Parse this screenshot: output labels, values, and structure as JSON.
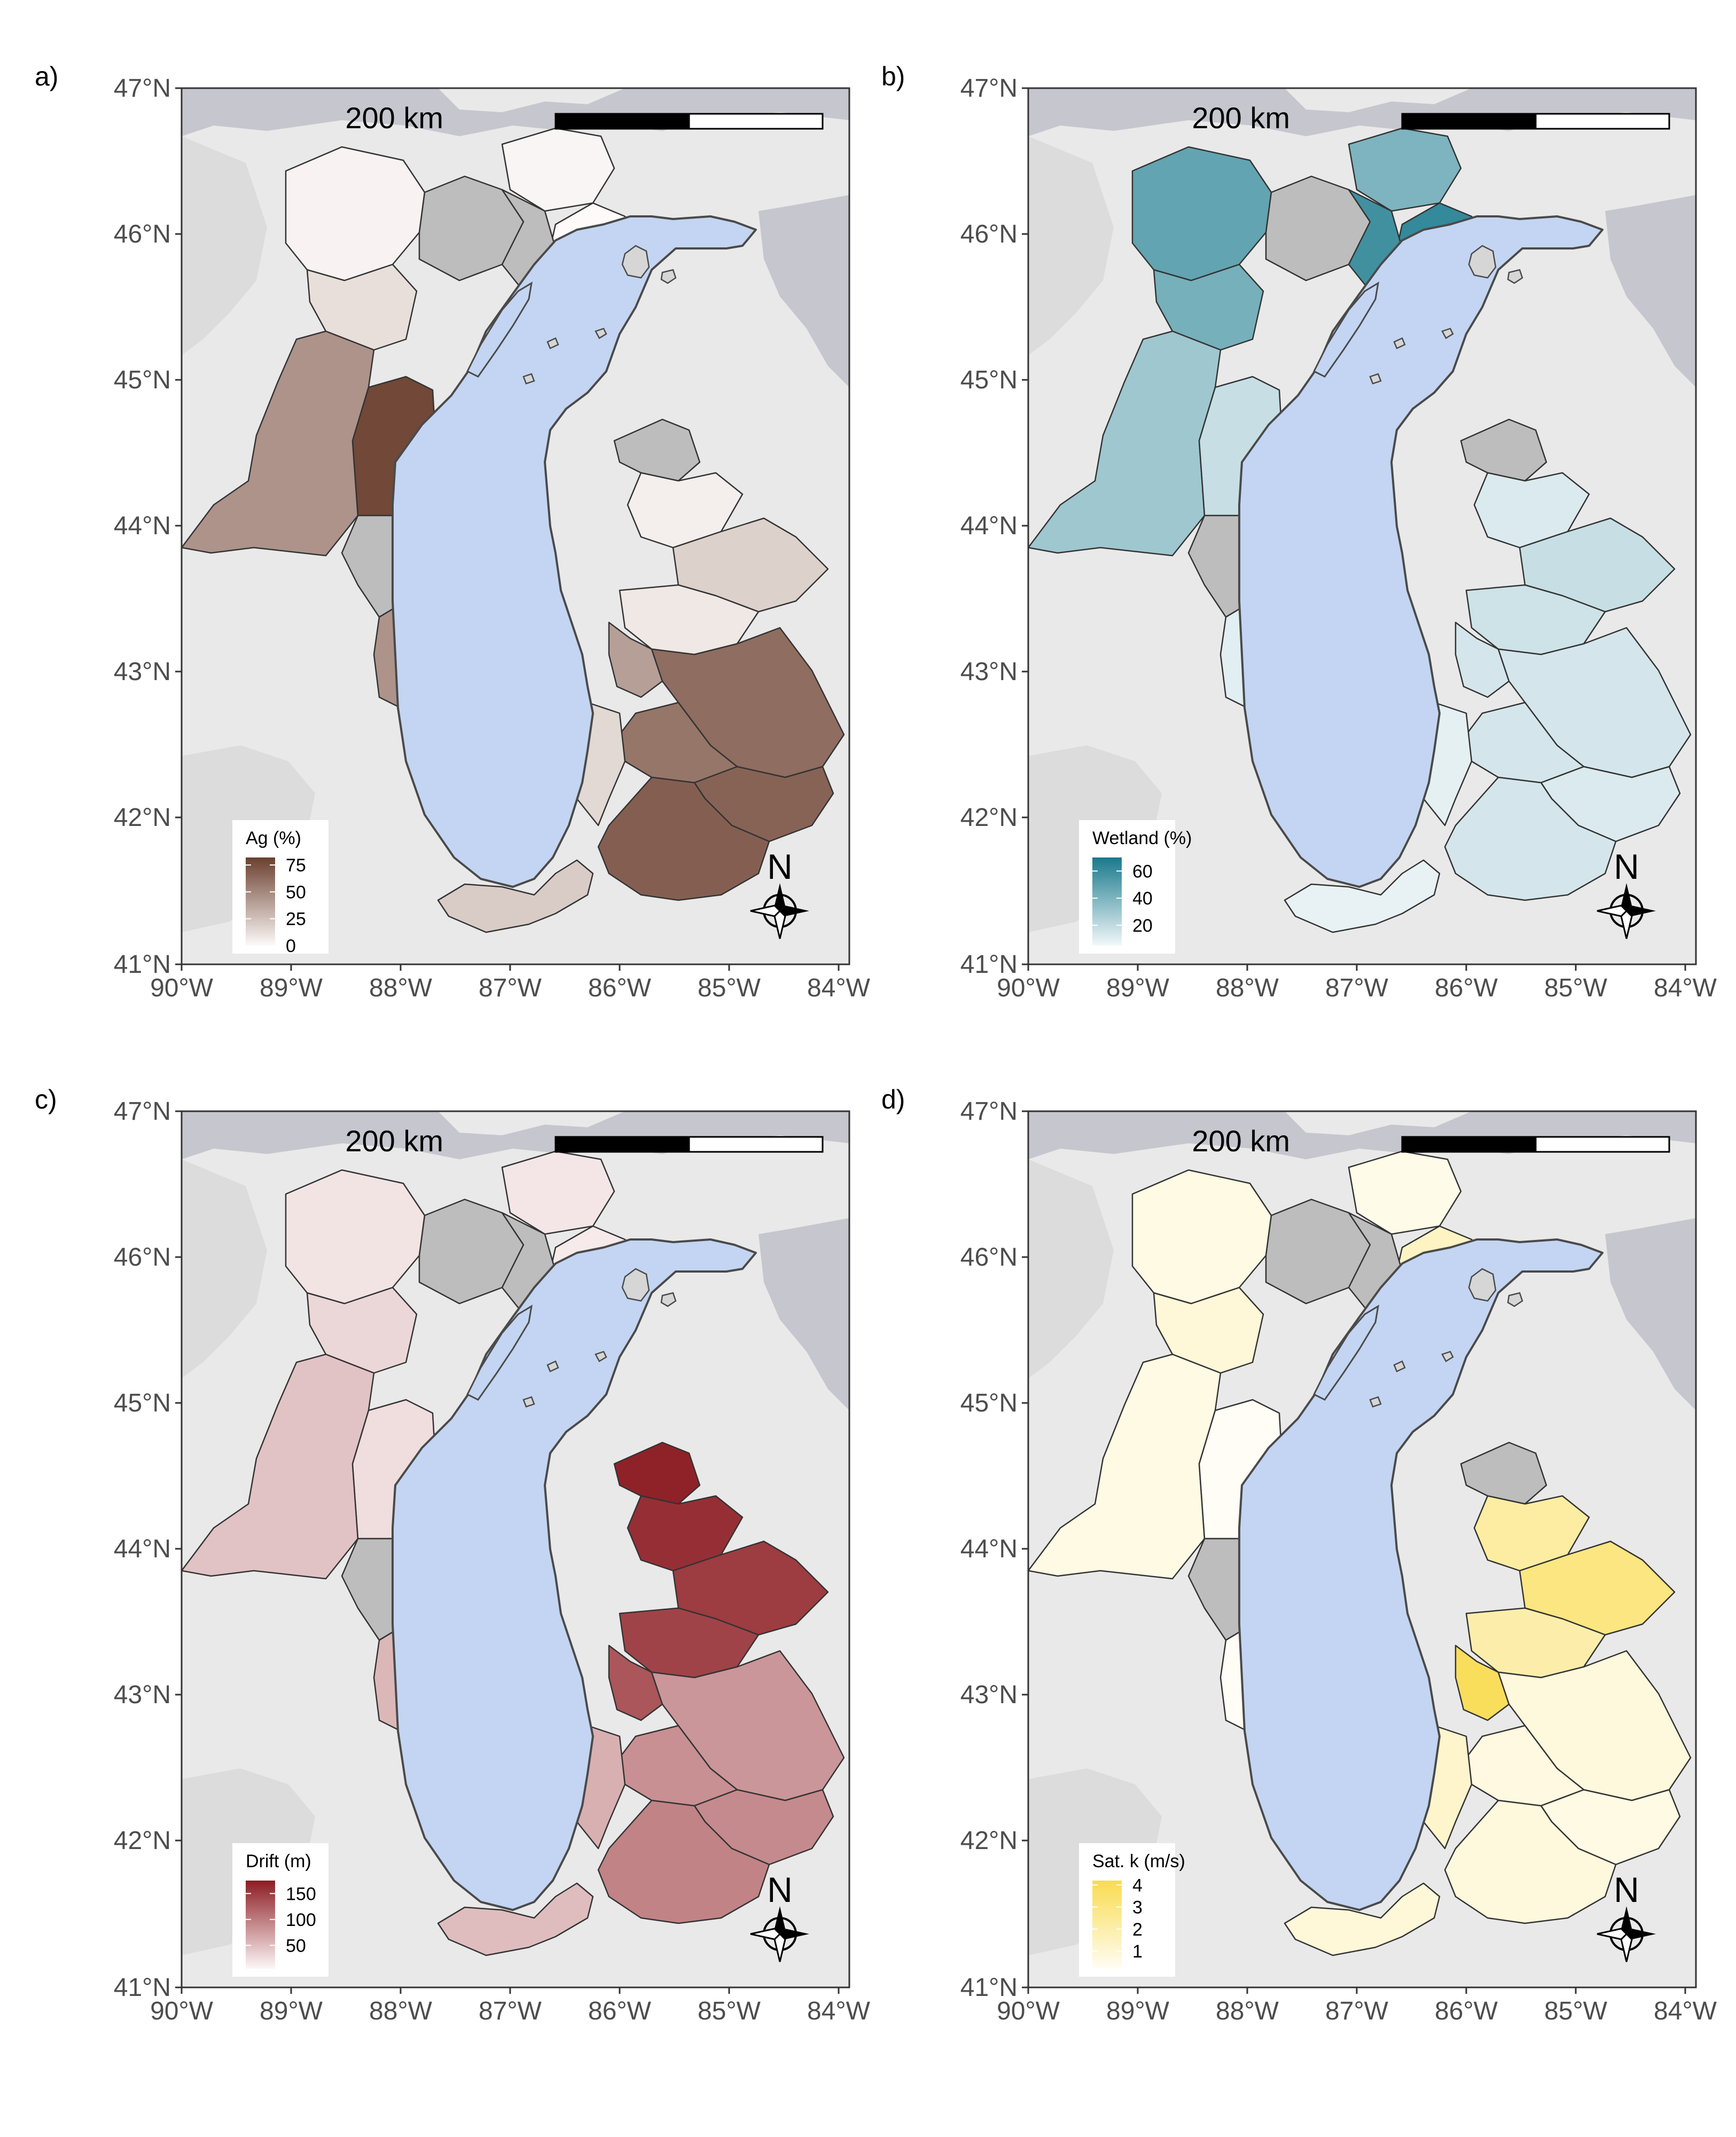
{
  "axes": {
    "y_ticks": [
      "47°N",
      "46°N",
      "45°N",
      "44°N",
      "43°N",
      "42°N",
      "41°N"
    ],
    "x_ticks": [
      "90°W",
      "89°W",
      "88°W",
      "87°W",
      "86°W",
      "85°W",
      "84°W"
    ]
  },
  "scale_bar_label": "200 km",
  "north_label": "N",
  "colors": {
    "map_background": "#e9e9e9",
    "land_background": "#dcdcdc",
    "neighbor_water": "#c6c6ce",
    "lake_fill": "#c3d5f2",
    "no_data_fill": "#bdbdbd",
    "watershed_outline": "#333333"
  },
  "panels": [
    {
      "letter": "a)",
      "legend_title": "Ag (%)",
      "legend_ticks": [
        "75",
        "50",
        "25",
        "0"
      ],
      "legend_tick_values": [
        75,
        50,
        25,
        0
      ],
      "legend_range": [
        0,
        82
      ],
      "color_low": "#fdfaf9",
      "color_high": "#6b3f2e",
      "watershed_values": {
        "nw_upper_wi": 3,
        "north_wi_ne": 12,
        "fox_wolf": 45,
        "nw_mid_wi": 2,
        "wi_east_mid": 78,
        "up_east": 0,
        "up_west_small": null,
        "up_central": null,
        "mi_nw_a": null,
        "mi_nw_b": 5,
        "mi_central_north": 18,
        "mi_central_mid": 8,
        "mi_west_small": 40,
        "mi_sw_upper": 62,
        "mi_grand": 58,
        "mi_sw_lower": 66,
        "mi_st_joseph": 68,
        "il_in_shore": 20,
        "wi_milwaukee": null,
        "wi_lakeshore_south": 45,
        "in_shore": 15
      }
    },
    {
      "letter": "b)",
      "legend_title": "Wetland (%)",
      "legend_ticks": [
        "60",
        "40",
        "20"
      ],
      "legend_tick_values": [
        60,
        40,
        20
      ],
      "legend_range": [
        5,
        70
      ],
      "color_low": "#f2f8fa",
      "color_high": "#19798c",
      "watershed_values": {
        "nw_upper_wi": 48,
        "north_wi_ne": 42,
        "fox_wolf": 30,
        "nw_mid_wi": 40,
        "wi_east_mid": 18,
        "up_east": 62,
        "up_west_small": null,
        "up_central": 58,
        "mi_nw_a": null,
        "mi_nw_b": 12,
        "mi_central_north": 18,
        "mi_central_mid": 16,
        "mi_west_small": 14,
        "mi_sw_upper": 14,
        "mi_grand": 14,
        "mi_sw_lower": 12,
        "mi_st_joseph": 14,
        "il_in_shore": 8,
        "wi_milwaukee": null,
        "wi_lakeshore_south": 10,
        "in_shore": 9
      }
    },
    {
      "letter": "c)",
      "legend_title": "Drift (m)",
      "legend_ticks": [
        "150",
        "100",
        "50"
      ],
      "legend_tick_values": [
        150,
        100,
        50
      ],
      "legend_range": [
        5,
        175
      ],
      "color_low": "#fdf7f7",
      "color_high": "#8c1c22",
      "watershed_values": {
        "nw_upper_wi": 20,
        "north_wi_ne": 30,
        "fox_wolf": 45,
        "nw_mid_wi": 18,
        "wi_east_mid": 25,
        "up_east": 15,
        "up_west_small": null,
        "up_central": null,
        "mi_nw_a": 170,
        "mi_nw_b": 160,
        "mi_central_north": 150,
        "mi_central_mid": 145,
        "mi_west_small": 130,
        "mi_sw_upper": 80,
        "mi_grand": 85,
        "mi_sw_lower": 90,
        "mi_st_joseph": 95,
        "il_in_shore": 50,
        "wi_milwaukee": null,
        "wi_lakeshore_south": 55,
        "in_shore": 60
      }
    },
    {
      "letter": "d)",
      "legend_title": "Sat. k (m/s)",
      "legend_ticks": [
        "4",
        "3",
        "2",
        "1"
      ],
      "legend_tick_values": [
        4,
        3,
        2,
        1
      ],
      "legend_range": [
        0.2,
        4.2
      ],
      "color_low": "#fffdf5",
      "color_high": "#f9dc4f",
      "watershed_values": {
        "nw_upper_wi": 0.6,
        "north_wi_ne": 0.9,
        "fox_wolf": 0.6,
        "nw_mid_wi": 0.5,
        "wi_east_mid": 0.1,
        "up_east": 1.4,
        "up_west_small": null,
        "up_central": null,
        "mi_nw_a": null,
        "mi_nw_b": 2.2,
        "mi_central_north": 3.0,
        "mi_central_mid": 2.0,
        "mi_west_small": 3.9,
        "mi_sw_upper": 0.8,
        "mi_grand": 0.7,
        "mi_sw_lower": 0.6,
        "mi_st_joseph": 0.8,
        "il_in_shore": 0.9,
        "wi_milwaukee": null,
        "wi_lakeshore_south": 0.2,
        "in_shore": 1.2
      }
    }
  ]
}
